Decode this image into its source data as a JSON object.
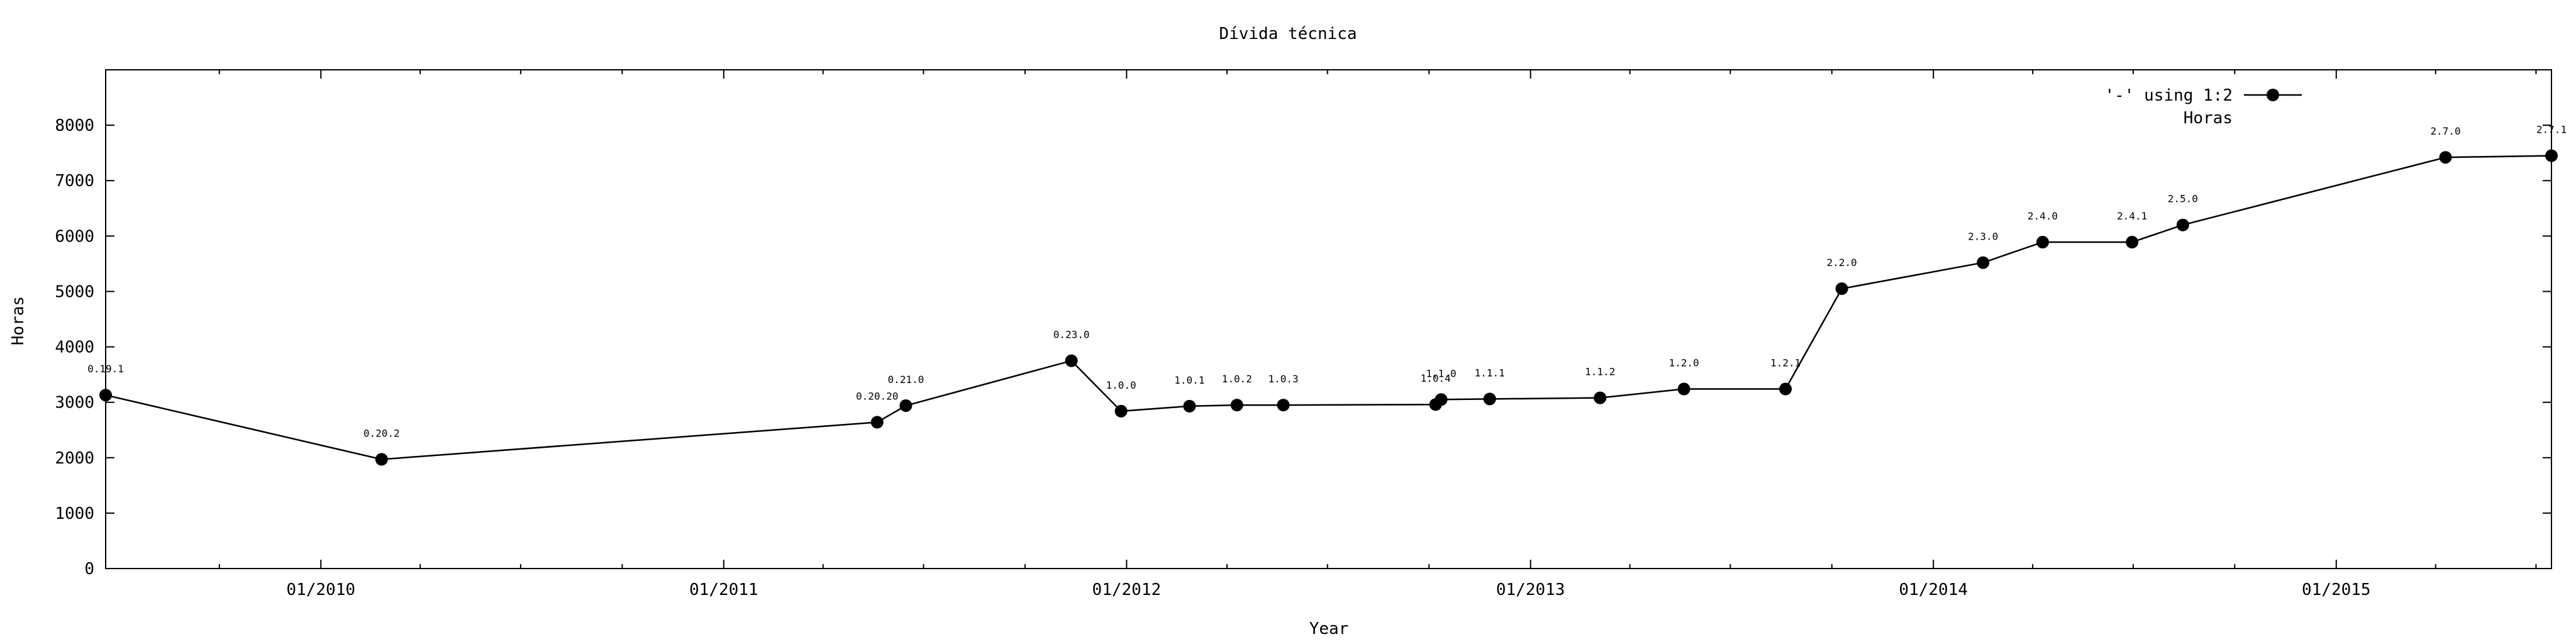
{
  "chart_data": {
    "type": "line",
    "title": "Dívida técnica",
    "xlabel": "Year",
    "ylabel": "Horas",
    "x_axis_type": "date",
    "xlim": [
      "2009-06-20",
      "2015-07-15"
    ],
    "ylim": [
      0,
      9000
    ],
    "y_ticks": [
      0,
      1000,
      2000,
      3000,
      4000,
      5000,
      6000,
      7000,
      8000
    ],
    "x_ticks": [
      {
        "date": "2010-01-01",
        "label": "01/2010"
      },
      {
        "date": "2011-01-01",
        "label": "01/2011"
      },
      {
        "date": "2012-01-01",
        "label": "01/2012"
      },
      {
        "date": "2013-01-01",
        "label": "01/2013"
      },
      {
        "date": "2014-01-01",
        "label": "01/2014"
      },
      {
        "date": "2015-01-01",
        "label": "01/2015"
      }
    ],
    "x_minor_ticks": [
      "2009-10-01",
      "2010-04-01",
      "2010-07-01",
      "2010-10-01",
      "2011-04-01",
      "2011-07-01",
      "2011-10-01",
      "2012-04-01",
      "2012-07-01",
      "2012-10-01",
      "2013-04-01",
      "2013-07-01",
      "2013-10-01",
      "2014-04-01",
      "2014-07-01",
      "2014-10-01",
      "2015-04-01",
      "2015-07-01"
    ],
    "grid": false,
    "legend": {
      "position": "top-right",
      "entries": [
        "'-' using 1:2",
        "Horas"
      ]
    },
    "series": [
      {
        "name": "Horas",
        "color": "#000000",
        "marker": "circle",
        "points": [
          {
            "x": "2009-06-20",
            "y": 3130,
            "label": "0.19.1"
          },
          {
            "x": "2010-02-25",
            "y": 1970,
            "label": "0.20.2"
          },
          {
            "x": "2011-05-20",
            "y": 2640,
            "label": "0.20.20"
          },
          {
            "x": "2011-06-15",
            "y": 2940,
            "label": "0.21.0"
          },
          {
            "x": "2011-11-12",
            "y": 3750,
            "label": "0.23.0"
          },
          {
            "x": "2011-12-27",
            "y": 2840,
            "label": "1.0.0"
          },
          {
            "x": "2012-02-27",
            "y": 2930,
            "label": "1.0.1"
          },
          {
            "x": "2012-04-10",
            "y": 2950,
            "label": "1.0.2"
          },
          {
            "x": "2012-05-22",
            "y": 2950,
            "label": "1.0.3"
          },
          {
            "x": "2012-10-07",
            "y": 2960,
            "label": "1.0.4"
          },
          {
            "x": "2012-10-12",
            "y": 3050,
            "label": "1.1.0"
          },
          {
            "x": "2012-11-25",
            "y": 3060,
            "label": "1.1.1"
          },
          {
            "x": "2013-03-05",
            "y": 3080,
            "label": "1.1.2"
          },
          {
            "x": "2013-05-20",
            "y": 3240,
            "label": "1.2.0"
          },
          {
            "x": "2013-08-20",
            "y": 3240,
            "label": "1.2.1"
          },
          {
            "x": "2013-10-10",
            "y": 5050,
            "label": "2.2.0"
          },
          {
            "x": "2014-02-15",
            "y": 5520,
            "label": "2.3.0"
          },
          {
            "x": "2014-04-10",
            "y": 5890,
            "label": "2.4.0"
          },
          {
            "x": "2014-06-30",
            "y": 5890,
            "label": "2.4.1"
          },
          {
            "x": "2014-08-15",
            "y": 6200,
            "label": "2.5.0"
          },
          {
            "x": "2015-04-10",
            "y": 7420,
            "label": "2.7.0"
          },
          {
            "x": "2015-07-15",
            "y": 7450,
            "label": "2.7.1"
          }
        ]
      }
    ]
  }
}
